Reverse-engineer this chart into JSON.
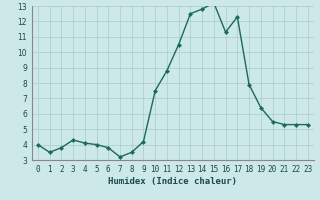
{
  "x": [
    0,
    1,
    2,
    3,
    4,
    5,
    6,
    7,
    8,
    9,
    10,
    11,
    12,
    13,
    14,
    15,
    16,
    17,
    18,
    19,
    20,
    21,
    22,
    23
  ],
  "y": [
    4.0,
    3.5,
    3.8,
    4.3,
    4.1,
    4.0,
    3.8,
    3.2,
    3.5,
    4.2,
    7.5,
    8.8,
    10.5,
    12.5,
    12.8,
    13.2,
    11.3,
    12.3,
    7.9,
    6.4,
    5.5,
    5.3,
    5.3,
    5.3
  ],
  "line_color": "#1a6b5a",
  "marker": "D",
  "marker_size": 2.0,
  "bg_color": "#cce8e8",
  "grid_color": "#aacccc",
  "xlabel": "Humidex (Indice chaleur)",
  "ylim": [
    3,
    13
  ],
  "xlim": [
    -0.5,
    23.5
  ],
  "yticks": [
    3,
    4,
    5,
    6,
    7,
    8,
    9,
    10,
    11,
    12,
    13
  ],
  "xtick_labels": [
    "0",
    "1",
    "2",
    "3",
    "4",
    "5",
    "6",
    "7",
    "8",
    "9",
    "10",
    "11",
    "12",
    "13",
    "14",
    "15",
    "16",
    "17",
    "18",
    "19",
    "20",
    "21",
    "22",
    "23"
  ],
  "xlabel_fontsize": 6.5,
  "tick_fontsize": 5.5,
  "line_width": 1.0
}
